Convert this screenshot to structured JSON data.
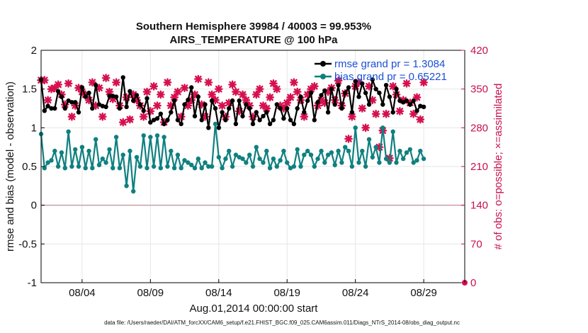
{
  "chart_data": {
    "type": "line",
    "title": "Southern Hemisphere 39984 / 40003 = 99.953%",
    "subtitle": "AIRS_TEMPERATURE @ 100 hPa",
    "xlabel": "Aug.01,2014 00:00:00 start",
    "ylabel": "rmse and bias (model - observation)",
    "ylabel_right": "# of obs: o=possible; ×=assimilated",
    "x_tick_labels": [
      "08/04",
      "08/09",
      "08/14",
      "08/19",
      "08/24",
      "08/29"
    ],
    "x_tick_days": [
      4,
      9,
      14,
      19,
      24,
      29
    ],
    "xlim_days": [
      1,
      32
    ],
    "ylim": [
      -1,
      2
    ],
    "y_ticks": [
      "-1",
      "-0.5",
      "0",
      "0.5",
      "1",
      "1.5",
      "2"
    ],
    "ylim_right": [
      0,
      420
    ],
    "y_ticks_right": [
      "0",
      "70",
      "140",
      "210",
      "280",
      "350",
      "420"
    ],
    "grid": true,
    "legend_position": "top-right",
    "colors": {
      "rmse": "#000000",
      "bias": "#0f8080",
      "obs": "#d6104e",
      "zero_line": "#c9a0a8",
      "grid": "#e6e6e6"
    },
    "series": [
      {
        "name": "rmse grand pr = 1.3084",
        "color": "#000000",
        "x_start_day": 1.0,
        "x_step_day": 0.25,
        "values": [
          1.62,
          1.22,
          1.28,
          1.25,
          1.25,
          1.47,
          1.4,
          1.25,
          1.35,
          1.33,
          1.33,
          1.2,
          1.52,
          1.4,
          1.45,
          1.25,
          1.55,
          1.3,
          1.28,
          1.27,
          1.41,
          1.41,
          1.4,
          1.25,
          1.65,
          1.27,
          1.47,
          1.35,
          1.42,
          1.3,
          1.22,
          1.38,
          1.07,
          1.1,
          1.12,
          1.18,
          1.05,
          1.1,
          1.2,
          1.35,
          1.1,
          1.05,
          1.3,
          1.36,
          1.52,
          1.15,
          1.4,
          1.1,
          1.3,
          1.0,
          1.35,
          1.25,
          1.0,
          1.2,
          1.1,
          1.25,
          1.35,
          1.05,
          1.35,
          1.15,
          1.3,
          1.25,
          1.05,
          1.2,
          1.1,
          1.15,
          1.2,
          1.05,
          1.1,
          1.3,
          1.25,
          1.12,
          1.25,
          1.1,
          1.05,
          1.25,
          1.4,
          1.2,
          1.35,
          1.45,
          1.1,
          1.33,
          1.42,
          1.48,
          1.2,
          1.5,
          1.3,
          1.55,
          1.25,
          1.45,
          1.52,
          1.2,
          1.6,
          1.4,
          1.57,
          1.45,
          1.3,
          1.62,
          1.5,
          1.45,
          1.3,
          1.55,
          1.4,
          1.2,
          1.5,
          1.35,
          1.33,
          1.35,
          1.3,
          1.35,
          1.22,
          1.28,
          1.27
        ]
      },
      {
        "name": "bias grand pr = 0.65221",
        "color": "#0f8080",
        "x_start_day": 1.0,
        "x_step_day": 0.25,
        "values": [
          0.92,
          0.48,
          0.55,
          0.58,
          0.7,
          0.5,
          0.68,
          0.48,
          0.95,
          0.5,
          0.72,
          0.5,
          0.75,
          0.48,
          0.7,
          0.48,
          0.85,
          0.52,
          0.6,
          0.55,
          0.72,
          0.48,
          0.88,
          0.48,
          0.65,
          0.25,
          0.7,
          0.18,
          0.62,
          0.5,
          0.9,
          0.48,
          0.88,
          0.5,
          0.9,
          0.48,
          0.88,
          0.5,
          0.7,
          0.48,
          0.65,
          0.48,
          0.58,
          0.55,
          0.52,
          0.48,
          0.6,
          0.48,
          0.55,
          0.5,
          0.5,
          1.05,
          0.62,
          0.48,
          0.6,
          0.7,
          0.5,
          0.65,
          0.62,
          0.6,
          0.55,
          0.65,
          0.5,
          0.75,
          0.6,
          0.55,
          0.7,
          0.48,
          0.6,
          0.5,
          0.58,
          0.7,
          0.55,
          0.48,
          0.5,
          0.72,
          0.5,
          0.65,
          0.7,
          0.65,
          0.5,
          0.6,
          0.7,
          0.55,
          0.65,
          0.68,
          0.52,
          0.7,
          0.55,
          0.75,
          0.7,
          0.5,
          1.0,
          0.55,
          0.7,
          0.5,
          0.85,
          0.62,
          0.75,
          0.55,
          1.0,
          0.6,
          0.55,
          0.95,
          0.55,
          0.7,
          0.6,
          0.68,
          0.72,
          0.55,
          0.58,
          0.7,
          0.6
        ]
      },
      {
        "name": "# of obs assimilated",
        "color": "#d6104e",
        "axis": "right",
        "x_start_day": 1.0,
        "x_step_day": 0.25,
        "values": [
          366,
          366,
          330,
          350,
          352,
          358,
          340,
          322,
          360,
          300,
          320,
          352,
          345,
          340,
          330,
          362,
          320,
          352,
          300,
          370,
          345,
          332,
          362,
          320,
          290,
          335,
          295,
          340,
          330,
          320,
          300,
          345,
          310,
          355,
          320,
          340,
          290,
          362,
          320,
          335,
          345,
          300,
          352,
          320,
          330,
          340,
          368,
          322,
          300,
          362,
          340,
          330,
          350,
          320,
          300,
          325,
          358,
          345,
          310,
          340,
          330,
          320,
          300,
          340,
          350,
          320,
          315,
          335,
          360,
          350,
          320,
          315,
          325,
          335,
          362,
          345,
          330,
          300,
          340,
          350,
          355,
          320,
          330,
          325,
          345,
          352,
          330,
          365,
          320,
          342,
          260,
          300,
          355,
          362,
          315,
          280,
          355,
          330,
          305,
          245,
          275,
          305,
          225,
          355,
          340,
          310,
          330,
          360,
          325,
          305,
          335,
          295,
          362
        ]
      }
    ],
    "footer": "data file: /Users/raeder/DAI/ATM_forcXX/CAM6_setup/f.e21.FHIST_BGC.f09_025.CAM6assim.011/Diags_NTrS_2014-08/obs_diag_output.nc"
  }
}
